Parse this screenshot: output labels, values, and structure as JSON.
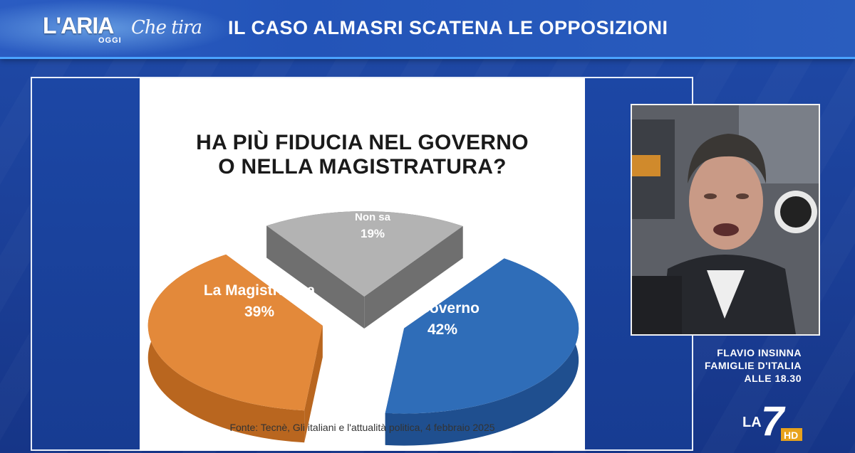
{
  "header": {
    "logo_main": "L'ARIA",
    "logo_sub": "OGGI",
    "logo_script": "Che tira",
    "headline": "IL CASO ALMASRI SCATENA LE OPPOSIZIONI"
  },
  "chart_data": {
    "type": "pie",
    "title_line1": "HA PIÙ FIDUCIA NEL GOVERNO",
    "title_line2": "O NELLA MAGISTRATURA?",
    "slices": [
      {
        "label": "Il Governo",
        "value": 42,
        "value_label": "42%",
        "color": "#2f6db8",
        "side": "#1f4f8f"
      },
      {
        "label": "La Magistratura",
        "value": 39,
        "value_label": "39%",
        "color": "#e3893a",
        "side": "#b9661f"
      },
      {
        "label": "Non sa",
        "value": 19,
        "value_label": "19%",
        "color": "#b3b3b3",
        "side": "#6f6f6f"
      }
    ],
    "source": "Fonte: Tecnè, Gli italiani e l'attualità politica, 4 febbraio 2025"
  },
  "promo": {
    "line1": "FLAVIO INSINNA",
    "line2": "FAMIGLIE D'ITALIA",
    "line3": "ALLE 18.30"
  },
  "channel": {
    "name": "LA",
    "number": "7",
    "badge": "HD"
  }
}
